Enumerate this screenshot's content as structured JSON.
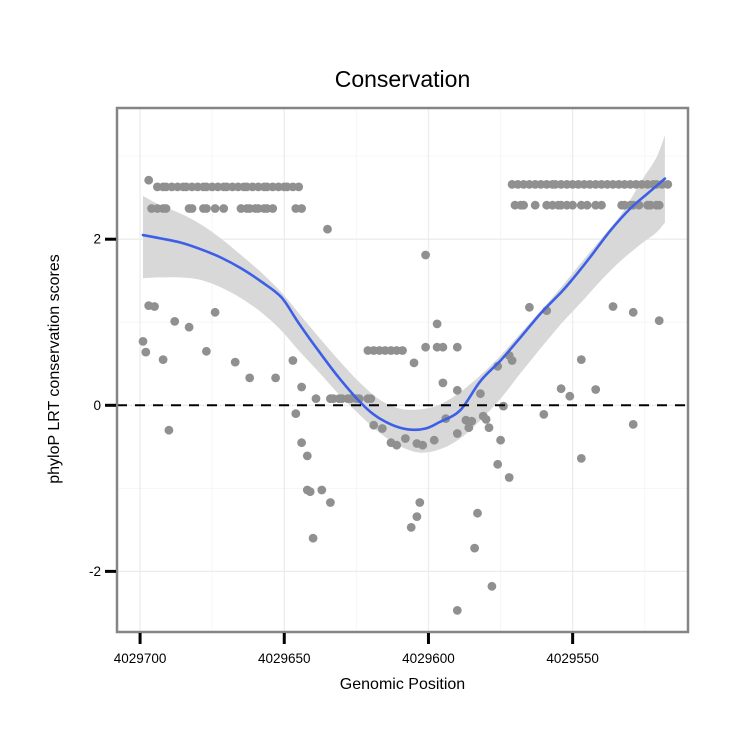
{
  "chart_data": {
    "type": "scatter",
    "title": "Conservation",
    "xlabel": "Genomic Position",
    "ylabel": "phyloP LRT conservation scores",
    "x_axis": {
      "ticks": [
        4029700,
        4029650,
        4029600,
        4029550
      ],
      "minor_ticks": [
        4029675,
        4029625,
        4029575,
        4029525
      ],
      "domain": [
        4029708,
        4029510
      ],
      "reversed": true
    },
    "y_axis": {
      "ticks": [
        -2,
        0,
        2
      ],
      "minor_ticks": [
        -1,
        1,
        3
      ],
      "domain": [
        -2.73,
        3.58
      ]
    },
    "reference_line": {
      "y": 0,
      "style": "dashed"
    },
    "colors": {
      "point": "#909090",
      "smooth_line": "#3C5FE6",
      "confidence_band": "#D8D8D8",
      "panel_border": "#858585",
      "grid_major": "#ECECEC",
      "grid_minor": "#F6F6F6",
      "background": "#FFFFFF",
      "text": "#000000",
      "reference_line": "#000000"
    },
    "point_rows": [
      {
        "label": "upper-row-left",
        "score": 2.63,
        "positions": [
          4029694,
          4029692,
          4029691,
          4029689,
          4029687,
          4029685,
          4029684,
          4029682,
          4029680,
          4029678,
          4029677,
          4029675,
          4029673,
          4029671,
          4029670,
          4029668,
          4029666,
          4029664,
          4029663,
          4029661,
          4029659,
          4029657,
          4029656,
          4029654,
          4029652,
          4029650,
          4029649,
          4029647,
          4029645
        ]
      },
      {
        "label": "lower-row-left",
        "score": 2.37,
        "positions": [
          4029696,
          4029694,
          4029692,
          4029691,
          4029683,
          4029682,
          4029678,
          4029677,
          4029674,
          4029671,
          4029665,
          4029663,
          4029662,
          4029660,
          4029659,
          4029657,
          4029656,
          4029654,
          4029646,
          4029644
        ]
      },
      {
        "label": "upper-row-right",
        "score": 2.66,
        "positions": [
          4029571,
          4029569,
          4029567,
          4029565,
          4029563,
          4029561,
          4029559,
          4029557,
          4029556,
          4029554,
          4029552,
          4029550,
          4029548,
          4029546,
          4029544,
          4029542,
          4029540,
          4029538,
          4029536,
          4029534,
          4029532,
          4029530,
          4029528,
          4029526,
          4029524,
          4029522,
          4029521,
          4029519,
          4029517
        ]
      },
      {
        "label": "lower-row-right",
        "score": 2.41,
        "positions": [
          4029570,
          4029568,
          4029567,
          4029563,
          4029559,
          4029557,
          4029555,
          4029554,
          4029552,
          4029550,
          4029547,
          4029545,
          4029542,
          4029540,
          4029533,
          4029532,
          4029530,
          4029529,
          4029527,
          4029524,
          4029523,
          4029521,
          4029520
        ]
      },
      {
        "label": "mid-row",
        "score": 0.66,
        "positions": [
          4029621,
          4029619,
          4029617,
          4029615,
          4029613,
          4029611,
          4029609
        ]
      },
      {
        "label": "mid-row-right",
        "score": 0.7,
        "positions": [
          4029601,
          4029597,
          4029595,
          4029590
        ]
      },
      {
        "label": "zero-cluster",
        "score": 0.08,
        "positions": [
          4029639,
          4029634,
          4029633,
          4029631,
          4029630,
          4029628,
          4029627,
          4029625,
          4029624,
          4029621,
          4029620
        ]
      }
    ],
    "points": [
      [
        4029697,
        2.71
      ],
      [
        4029697,
        1.2
      ],
      [
        4029695,
        1.19
      ],
      [
        4029699,
        0.77
      ],
      [
        4029698,
        0.64
      ],
      [
        4029692,
        0.55
      ],
      [
        4029690,
        -0.3
      ],
      [
        4029688,
        1.01
      ],
      [
        4029683,
        0.94
      ],
      [
        4029677,
        0.65
      ],
      [
        4029674,
        1.12
      ],
      [
        4029667,
        0.52
      ],
      [
        4029662,
        0.33
      ],
      [
        4029653,
        0.33
      ],
      [
        4029647,
        0.54
      ],
      [
        4029646,
        -0.1
      ],
      [
        4029644,
        0.22
      ],
      [
        4029644,
        -0.45
      ],
      [
        4029642,
        -0.61
      ],
      [
        4029642,
        -1.02
      ],
      [
        4029641,
        -1.04
      ],
      [
        4029640,
        -1.6
      ],
      [
        4029637,
        -1.02
      ],
      [
        4029635,
        2.12
      ],
      [
        4029634,
        -1.17
      ],
      [
        4029619,
        -0.24
      ],
      [
        4029616,
        -0.28
      ],
      [
        4029613,
        -0.45
      ],
      [
        4029611,
        -0.48
      ],
      [
        4029608,
        -0.4
      ],
      [
        4029606,
        -1.47
      ],
      [
        4029605,
        0.51
      ],
      [
        4029604,
        -0.46
      ],
      [
        4029604,
        -1.34
      ],
      [
        4029603,
        -1.17
      ],
      [
        4029602,
        -0.48
      ],
      [
        4029601,
        1.81
      ],
      [
        4029598,
        -0.42
      ],
      [
        4029597,
        0.98
      ],
      [
        4029595,
        0.27
      ],
      [
        4029594,
        -0.16
      ],
      [
        4029590,
        -0.34
      ],
      [
        4029590,
        0.18
      ],
      [
        4029590,
        -2.47
      ],
      [
        4029587,
        -0.18
      ],
      [
        4029586,
        -0.27
      ],
      [
        4029585,
        -0.19
      ],
      [
        4029584,
        -1.72
      ],
      [
        4029583,
        -1.3
      ],
      [
        4029582,
        0.14
      ],
      [
        4029581,
        -0.13
      ],
      [
        4029580,
        -0.17
      ],
      [
        4029579,
        -0.27
      ],
      [
        4029578,
        -2.18
      ],
      [
        4029576,
        0.47
      ],
      [
        4029576,
        -0.71
      ],
      [
        4029575,
        -0.42
      ],
      [
        4029574,
        -0.01
      ],
      [
        4029572,
        0.6
      ],
      [
        4029572,
        -0.87
      ],
      [
        4029571,
        0.54
      ],
      [
        4029565,
        1.18
      ],
      [
        4029560,
        -0.11
      ],
      [
        4029559,
        1.14
      ],
      [
        4029554,
        0.2
      ],
      [
        4029551,
        0.11
      ],
      [
        4029547,
        0.55
      ],
      [
        4029547,
        -0.64
      ],
      [
        4029542,
        0.19
      ],
      [
        4029536,
        1.19
      ],
      [
        4029529,
        1.12
      ],
      [
        4029529,
        -0.23
      ],
      [
        4029520,
        1.02
      ]
    ],
    "smooth_line": [
      [
        4029699,
        2.05
      ],
      [
        4029693,
        2.01
      ],
      [
        4029686,
        1.96
      ],
      [
        4029679,
        1.88
      ],
      [
        4029672,
        1.78
      ],
      [
        4029665,
        1.65
      ],
      [
        4029658,
        1.49
      ],
      [
        4029651,
        1.3
      ],
      [
        4029645,
        0.99
      ],
      [
        4029638,
        0.65
      ],
      [
        4029631,
        0.33
      ],
      [
        4029624,
        0.05
      ],
      [
        4029619,
        -0.11
      ],
      [
        4029613,
        -0.23
      ],
      [
        4029607,
        -0.29
      ],
      [
        4029601,
        -0.28
      ],
      [
        4029596,
        -0.2
      ],
      [
        4029589,
        -0.06
      ],
      [
        4029582,
        0.29
      ],
      [
        4029575,
        0.54
      ],
      [
        4029568,
        0.82
      ],
      [
        4029561,
        1.11
      ],
      [
        4029554,
        1.36
      ],
      [
        4029550,
        1.52
      ],
      [
        4029544,
        1.78
      ],
      [
        4029537,
        2.1
      ],
      [
        4029530,
        2.37
      ],
      [
        4029524,
        2.55
      ],
      [
        4029518,
        2.73
      ]
    ],
    "band_upper": [
      [
        4029699,
        2.52
      ],
      [
        4029693,
        2.41
      ],
      [
        4029686,
        2.31
      ],
      [
        4029679,
        2.18
      ],
      [
        4029672,
        2.01
      ],
      [
        4029665,
        1.81
      ],
      [
        4029658,
        1.6
      ],
      [
        4029651,
        1.36
      ],
      [
        4029645,
        1.11
      ],
      [
        4029638,
        0.82
      ],
      [
        4029631,
        0.54
      ],
      [
        4029624,
        0.28
      ],
      [
        4029617,
        0.07
      ],
      [
        4029610,
        -0.04
      ],
      [
        4029603,
        -0.05
      ],
      [
        4029596,
        0.01
      ],
      [
        4029589,
        0.16
      ],
      [
        4029582,
        0.36
      ],
      [
        4029575,
        0.6
      ],
      [
        4029568,
        0.87
      ],
      [
        4029561,
        1.14
      ],
      [
        4029554,
        1.42
      ],
      [
        4029547,
        1.72
      ],
      [
        4029540,
        2.01
      ],
      [
        4029533,
        2.31
      ],
      [
        4029526,
        2.71
      ],
      [
        4029521,
        2.98
      ],
      [
        4029518,
        3.25
      ]
    ],
    "band_lower": [
      [
        4029699,
        1.53
      ],
      [
        4029693,
        1.54
      ],
      [
        4029686,
        1.54
      ],
      [
        4029679,
        1.51
      ],
      [
        4029672,
        1.42
      ],
      [
        4029665,
        1.29
      ],
      [
        4029658,
        1.12
      ],
      [
        4029651,
        0.9
      ],
      [
        4029645,
        0.66
      ],
      [
        4029638,
        0.4
      ],
      [
        4029631,
        0.13
      ],
      [
        4029624,
        -0.11
      ],
      [
        4029617,
        -0.33
      ],
      [
        4029610,
        -0.49
      ],
      [
        4029603,
        -0.57
      ],
      [
        4029596,
        -0.53
      ],
      [
        4029589,
        -0.4
      ],
      [
        4029582,
        -0.18
      ],
      [
        4029575,
        0.08
      ],
      [
        4029568,
        0.39
      ],
      [
        4029561,
        0.69
      ],
      [
        4029554,
        0.98
      ],
      [
        4029547,
        1.24
      ],
      [
        4029540,
        1.51
      ],
      [
        4029533,
        1.75
      ],
      [
        4029526,
        1.95
      ],
      [
        4029521,
        2.08
      ],
      [
        4029518,
        2.2
      ]
    ]
  }
}
